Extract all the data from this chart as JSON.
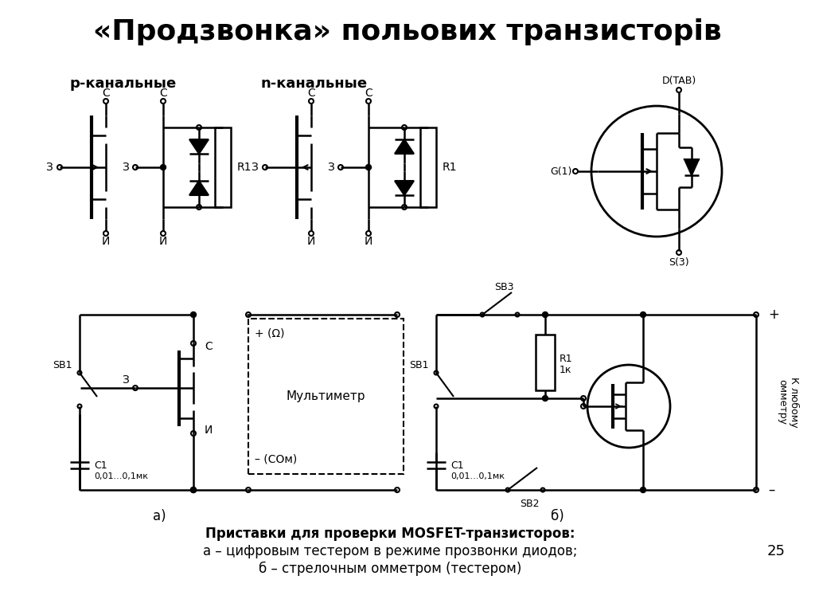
{
  "title": "«Продзвонка» польових транзисторів",
  "title_fontsize": 26,
  "title_fontweight": "bold",
  "background_color": "#ffffff",
  "text_color": "#000000",
  "label_p_channel": "р-канальные",
  "label_n_channel": "n-канальные",
  "caption_line1": "Приставки для проверки MOSFET-транзисторов:",
  "caption_line2": "а – цифровым тестером в режиме прозвонки диодов;",
  "caption_line3": "б – стрелочным омметром (тестером)",
  "label_a": "а)",
  "label_b": "б)",
  "page_number": "25",
  "label_G": "G(1)",
  "label_D": "D(TAB)",
  "label_S": "S(3)",
  "label_Z": "З",
  "label_C": "С",
  "label_I": "И",
  "label_R1": "R1",
  "label_SB1": "SB1",
  "label_SB2": "SB2",
  "label_SB3": "SB3",
  "label_C1": "C1",
  "label_C1val": "0,01...0,1мк",
  "label_multimeter": "Мультиметр",
  "label_plus_ohm": "+ (Ω)",
  "label_minus_com": "– (СОм)",
  "label_plus": "+",
  "label_minus": "–",
  "label_k_lyubomu": "К любому\nомметру",
  "label_R1val": "1к"
}
